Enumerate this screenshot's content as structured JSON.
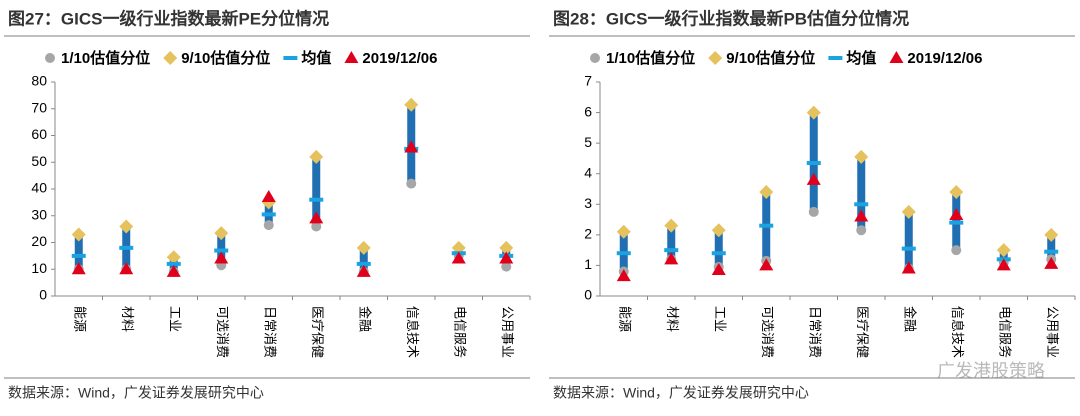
{
  "chart_data": [
    {
      "type": "range",
      "title": "图27：GICS一级行业指数最新PE分位情况",
      "source": "数据来源：Wind，广发证券发展研究中心",
      "categories": [
        "能源",
        "材料",
        "工业",
        "可选消费",
        "日常消费",
        "医疗保健",
        "金融",
        "信息技术",
        "电信服务",
        "公用事业"
      ],
      "series": [
        {
          "name": "1/10估值分位",
          "color": "#a6a6a6",
          "values": [
            10,
            10,
            9,
            11.5,
            26.5,
            26,
            9,
            42,
            15,
            11
          ]
        },
        {
          "name": "9/10估值分位",
          "color": "#e6c25e",
          "values": [
            23,
            26,
            14.5,
            23.5,
            35,
            52,
            18,
            71.5,
            18,
            18
          ]
        },
        {
          "name": "均值",
          "color": "#1aa3e0",
          "values": [
            15,
            18,
            12,
            17,
            30.5,
            36,
            12,
            55,
            16,
            15
          ]
        },
        {
          "name": "2019/12/06",
          "color": "#e0001b",
          "values": [
            10,
            10,
            9,
            14,
            37,
            29,
            9,
            55.5,
            14,
            14
          ]
        }
      ],
      "bar_color": "#1f6fb2",
      "ylim": [
        0,
        80
      ],
      "yticks": [
        0,
        10,
        20,
        30,
        40,
        50,
        60,
        70,
        80
      ]
    },
    {
      "type": "range",
      "title": "图28：GICS一级行业指数最新PB估值分位情况",
      "source": "数据来源：Wind，广发证券发展研究中心",
      "categories": [
        "能源",
        "材料",
        "工业",
        "可选消费",
        "日常消费",
        "医疗保健",
        "金融",
        "信息技术",
        "电信服务",
        "公用事业"
      ],
      "series": [
        {
          "name": "1/10估值分位",
          "color": "#a6a6a6",
          "values": [
            0.8,
            1.2,
            0.95,
            1.15,
            2.75,
            2.15,
            0.9,
            1.5,
            1.1,
            1.2
          ]
        },
        {
          "name": "9/10估值分位",
          "color": "#e6c25e",
          "values": [
            2.1,
            2.3,
            2.15,
            3.4,
            6,
            4.55,
            2.75,
            3.4,
            1.5,
            2
          ]
        },
        {
          "name": "均值",
          "color": "#1aa3e0",
          "values": [
            1.4,
            1.5,
            1.4,
            2.3,
            4.35,
            3,
            1.55,
            2.4,
            1.2,
            1.45
          ]
        },
        {
          "name": "2019/12/06",
          "color": "#e0001b",
          "values": [
            0.65,
            1.2,
            0.85,
            1,
            3.8,
            2.6,
            0.9,
            2.65,
            1,
            1.05
          ]
        }
      ],
      "bar_color": "#1f6fb2",
      "ylim": [
        0,
        7
      ],
      "yticks": [
        0,
        1,
        2,
        3,
        4,
        5,
        6,
        7
      ]
    }
  ],
  "watermark": "广发港股策略"
}
